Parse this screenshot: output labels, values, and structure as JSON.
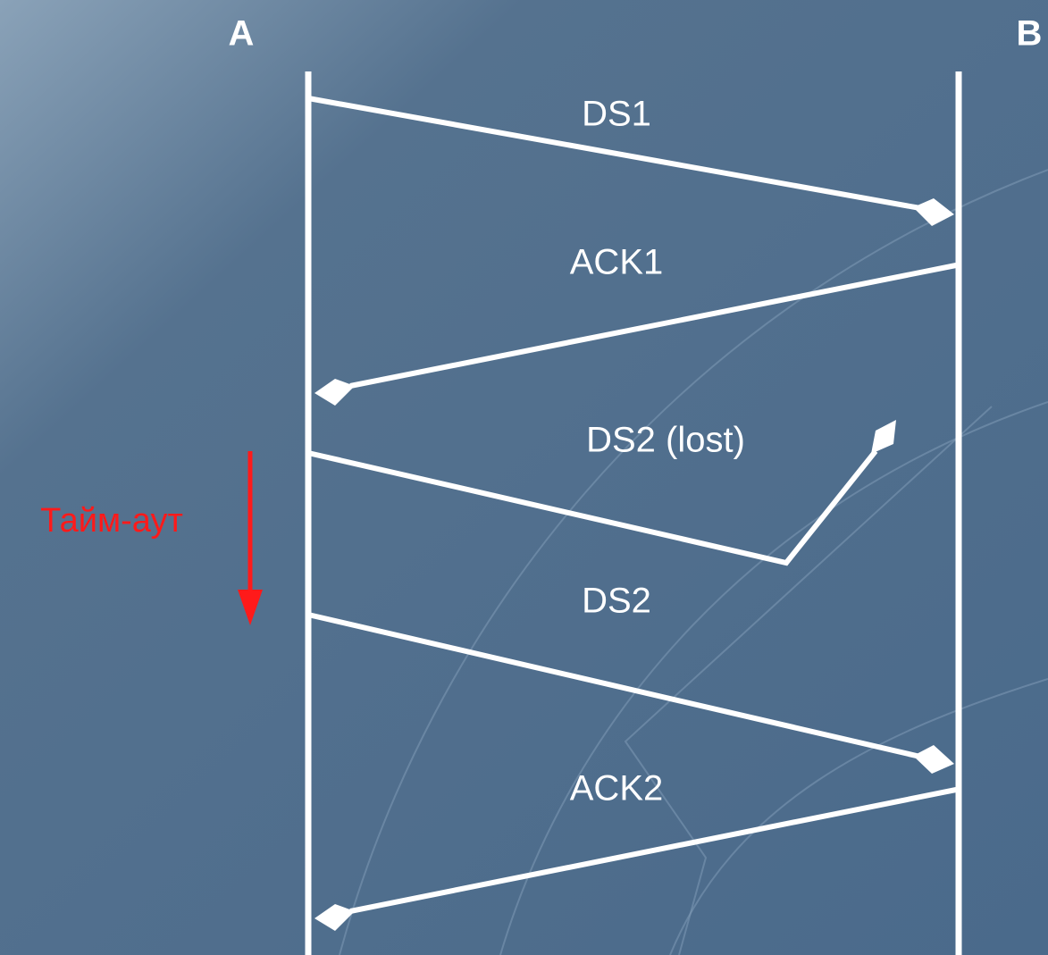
{
  "nodes": [
    {
      "label": "A"
    },
    {
      "label": "B"
    }
  ],
  "messages": [
    {
      "label": "DS1"
    },
    {
      "label": "ACK1"
    },
    {
      "label": "DS2 (lost)"
    },
    {
      "label": "DS2"
    },
    {
      "label": "ACK2"
    }
  ],
  "timeout": {
    "label": "Тайм-аут"
  }
}
